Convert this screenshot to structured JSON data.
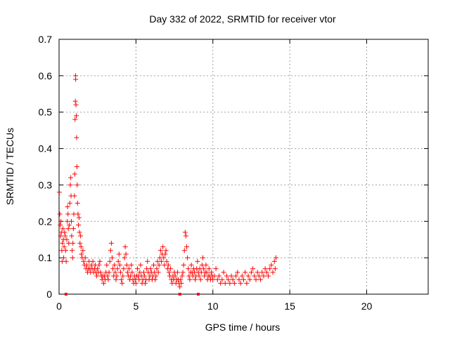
{
  "chart_data": {
    "type": "scatter",
    "title": "Day 332 of 2022, SRMTID for receiver vtor",
    "xlabel": "GPS time / hours",
    "ylabel": "SRMTID / TECUs",
    "xlim": [
      0,
      24
    ],
    "ylim": [
      0,
      0.7
    ],
    "xticks": [
      0,
      5,
      10,
      15,
      20
    ],
    "yticks": [
      0,
      0.1,
      0.2,
      0.3,
      0.4,
      0.5,
      0.6,
      0.7
    ],
    "xtick_labels": [
      "0",
      "5",
      "10",
      "15",
      "20"
    ],
    "ytick_labels": [
      "0",
      "0.1",
      "0.2",
      "0.3",
      "0.4",
      "0.5",
      "0.6",
      "0.7"
    ],
    "grid": true,
    "marker": "+",
    "color": "#ff0000",
    "series": [
      {
        "name": "SRMTID",
        "points": [
          [
            0.02,
            0.28
          ],
          [
            0.05,
            0.22
          ],
          [
            0.08,
            0.19
          ],
          [
            0.1,
            0.16
          ],
          [
            0.12,
            0.2
          ],
          [
            0.15,
            0.17
          ],
          [
            0.18,
            0.12
          ],
          [
            0.2,
            0.09
          ],
          [
            0.22,
            0.14
          ],
          [
            0.25,
            0.18
          ],
          [
            0.28,
            0.15
          ],
          [
            0.3,
            0.1
          ],
          [
            0.33,
            0.13
          ],
          [
            0.36,
            0.17
          ],
          [
            0.4,
            0.16
          ],
          [
            0.43,
            0.12
          ],
          [
            0.46,
            0.09
          ],
          [
            0.5,
            0.15
          ],
          [
            0.53,
            0.2
          ],
          [
            0.55,
            0.24
          ],
          [
            0.58,
            0.22
          ],
          [
            0.6,
            0.18
          ],
          [
            0.63,
            0.14
          ],
          [
            0.66,
            0.19
          ],
          [
            0.7,
            0.25
          ],
          [
            0.73,
            0.3
          ],
          [
            0.76,
            0.32
          ],
          [
            0.78,
            0.27
          ],
          [
            0.8,
            0.2
          ],
          [
            0.82,
            0.16
          ],
          [
            0.85,
            0.12
          ],
          [
            0.88,
            0.1
          ],
          [
            0.9,
            0.14
          ],
          [
            0.93,
            0.18
          ],
          [
            0.96,
            0.22
          ],
          [
            1.0,
            0.27
          ],
          [
            1.02,
            0.33
          ],
          [
            1.04,
            0.48
          ],
          [
            1.06,
            0.53
          ],
          [
            1.07,
            0.6
          ],
          [
            1.08,
            0.59
          ],
          [
            1.1,
            0.52
          ],
          [
            1.12,
            0.49
          ],
          [
            1.14,
            0.43
          ],
          [
            1.16,
            0.35
          ],
          [
            1.18,
            0.3
          ],
          [
            1.2,
            0.25
          ],
          [
            1.23,
            0.22
          ],
          [
            1.26,
            0.19
          ],
          [
            1.3,
            0.21
          ],
          [
            1.33,
            0.17
          ],
          [
            1.36,
            0.14
          ],
          [
            1.4,
            0.16
          ],
          [
            1.43,
            0.13
          ],
          [
            1.46,
            0.11
          ],
          [
            1.5,
            0.1
          ],
          [
            1.55,
            0.12
          ],
          [
            1.6,
            0.09
          ],
          [
            1.65,
            0.08
          ],
          [
            1.7,
            0.1
          ],
          [
            1.75,
            0.07
          ],
          [
            1.8,
            0.08
          ],
          [
            1.85,
            0.06
          ],
          [
            1.9,
            0.07
          ],
          [
            1.95,
            0.09
          ],
          [
            2.0,
            0.07
          ],
          [
            2.05,
            0.06
          ],
          [
            2.1,
            0.08
          ],
          [
            2.15,
            0.07
          ],
          [
            2.2,
            0.09
          ],
          [
            2.25,
            0.06
          ],
          [
            2.3,
            0.07
          ],
          [
            2.35,
            0.08
          ],
          [
            2.4,
            0.06
          ],
          [
            2.45,
            0.05
          ],
          [
            2.5,
            0.07
          ],
          [
            2.55,
            0.06
          ],
          [
            2.6,
            0.08
          ],
          [
            2.65,
            0.09
          ],
          [
            2.7,
            0.06
          ],
          [
            2.75,
            0.05
          ],
          [
            2.8,
            0.04
          ],
          [
            2.85,
            0.05
          ],
          [
            2.9,
            0.03
          ],
          [
            2.95,
            0.05
          ],
          [
            3.0,
            0.04
          ],
          [
            3.05,
            0.06
          ],
          [
            3.1,
            0.08
          ],
          [
            3.15,
            0.05
          ],
          [
            3.2,
            0.04
          ],
          [
            3.25,
            0.06
          ],
          [
            3.3,
            0.09
          ],
          [
            3.35,
            0.12
          ],
          [
            3.4,
            0.14
          ],
          [
            3.45,
            0.1
          ],
          [
            3.5,
            0.07
          ],
          [
            3.55,
            0.05
          ],
          [
            3.6,
            0.08
          ],
          [
            3.65,
            0.06
          ],
          [
            3.7,
            0.04
          ],
          [
            3.75,
            0.05
          ],
          [
            3.8,
            0.07
          ],
          [
            3.85,
            0.09
          ],
          [
            3.9,
            0.11
          ],
          [
            3.95,
            0.08
          ],
          [
            4.0,
            0.06
          ],
          [
            4.05,
            0.04
          ],
          [
            4.1,
            0.03
          ],
          [
            4.15,
            0.05
          ],
          [
            4.2,
            0.07
          ],
          [
            4.25,
            0.1
          ],
          [
            4.3,
            0.13
          ],
          [
            4.35,
            0.11
          ],
          [
            4.4,
            0.08
          ],
          [
            4.45,
            0.06
          ],
          [
            4.5,
            0.05
          ],
          [
            4.55,
            0.07
          ],
          [
            4.6,
            0.04
          ],
          [
            4.65,
            0.05
          ],
          [
            4.7,
            0.08
          ],
          [
            4.75,
            0.06
          ],
          [
            4.8,
            0.04
          ],
          [
            4.85,
            0.03
          ],
          [
            4.9,
            0.05
          ],
          [
            4.95,
            0.04
          ],
          [
            5.0,
            0.03
          ],
          [
            5.05,
            0.05
          ],
          [
            5.1,
            0.07
          ],
          [
            5.15,
            0.05
          ],
          [
            5.2,
            0.04
          ],
          [
            5.25,
            0.06
          ],
          [
            5.3,
            0.08
          ],
          [
            5.35,
            0.05
          ],
          [
            5.4,
            0.03
          ],
          [
            5.45,
            0.04
          ],
          [
            5.5,
            0.06
          ],
          [
            5.55,
            0.05
          ],
          [
            5.6,
            0.03
          ],
          [
            5.65,
            0.04
          ],
          [
            5.7,
            0.07
          ],
          [
            5.75,
            0.09
          ],
          [
            5.8,
            0.06
          ],
          [
            5.85,
            0.04
          ],
          [
            5.9,
            0.05
          ],
          [
            5.95,
            0.07
          ],
          [
            6.0,
            0.06
          ],
          [
            6.05,
            0.04
          ],
          [
            6.1,
            0.05
          ],
          [
            6.15,
            0.08
          ],
          [
            6.2,
            0.06
          ],
          [
            6.25,
            0.04
          ],
          [
            6.3,
            0.05
          ],
          [
            6.35,
            0.07
          ],
          [
            6.4,
            0.09
          ],
          [
            6.45,
            0.06
          ],
          [
            6.5,
            0.08
          ],
          [
            6.55,
            0.1
          ],
          [
            6.6,
            0.12
          ],
          [
            6.65,
            0.09
          ],
          [
            6.7,
            0.11
          ],
          [
            6.75,
            0.13
          ],
          [
            6.8,
            0.1
          ],
          [
            6.85,
            0.08
          ],
          [
            6.9,
            0.11
          ],
          [
            6.95,
            0.12
          ],
          [
            7.0,
            0.09
          ],
          [
            7.05,
            0.07
          ],
          [
            7.1,
            0.08
          ],
          [
            7.15,
            0.06
          ],
          [
            7.2,
            0.05
          ],
          [
            7.25,
            0.07
          ],
          [
            7.3,
            0.04
          ],
          [
            7.35,
            0.03
          ],
          [
            7.4,
            0.05
          ],
          [
            7.45,
            0.04
          ],
          [
            7.5,
            0.06
          ],
          [
            7.55,
            0.05
          ],
          [
            7.6,
            0.03
          ],
          [
            7.65,
            0.04
          ],
          [
            7.7,
            0.06
          ],
          [
            7.75,
            0.04
          ],
          [
            7.8,
            0.03
          ],
          [
            7.85,
            0.02
          ],
          [
            7.9,
            0.04
          ],
          [
            7.95,
            0.03
          ],
          [
            8.0,
            0.05
          ],
          [
            8.05,
            0.06
          ],
          [
            8.1,
            0.08
          ],
          [
            8.15,
            0.12
          ],
          [
            8.2,
            0.17
          ],
          [
            8.25,
            0.16
          ],
          [
            8.3,
            0.13
          ],
          [
            8.35,
            0.1
          ],
          [
            8.4,
            0.07
          ],
          [
            8.45,
            0.05
          ],
          [
            8.5,
            0.04
          ],
          [
            8.55,
            0.06
          ],
          [
            8.6,
            0.08
          ],
          [
            8.65,
            0.06
          ],
          [
            8.7,
            0.05
          ],
          [
            8.75,
            0.07
          ],
          [
            8.8,
            0.06
          ],
          [
            8.85,
            0.04
          ],
          [
            8.9,
            0.05
          ],
          [
            8.95,
            0.07
          ],
          [
            9.0,
            0.09
          ],
          [
            9.05,
            0.06
          ],
          [
            9.1,
            0.05
          ],
          [
            9.15,
            0.07
          ],
          [
            9.2,
            0.04
          ],
          [
            9.25,
            0.06
          ],
          [
            9.3,
            0.08
          ],
          [
            9.35,
            0.1
          ],
          [
            9.4,
            0.07
          ],
          [
            9.45,
            0.05
          ],
          [
            9.5,
            0.06
          ],
          [
            9.55,
            0.08
          ],
          [
            9.6,
            0.06
          ],
          [
            9.65,
            0.04
          ],
          [
            9.7,
            0.05
          ],
          [
            9.75,
            0.07
          ],
          [
            9.8,
            0.05
          ],
          [
            9.85,
            0.04
          ],
          [
            9.9,
            0.06
          ],
          [
            9.95,
            0.05
          ],
          [
            10.0,
            0.04
          ],
          [
            10.1,
            0.05
          ],
          [
            10.2,
            0.07
          ],
          [
            10.3,
            0.04
          ],
          [
            10.4,
            0.05
          ],
          [
            10.5,
            0.03
          ],
          [
            10.6,
            0.04
          ],
          [
            10.7,
            0.06
          ],
          [
            10.8,
            0.03
          ],
          [
            10.9,
            0.05
          ],
          [
            11.0,
            0.04
          ],
          [
            11.1,
            0.03
          ],
          [
            11.2,
            0.05
          ],
          [
            11.3,
            0.04
          ],
          [
            11.4,
            0.03
          ],
          [
            11.5,
            0.05
          ],
          [
            11.6,
            0.06
          ],
          [
            11.7,
            0.04
          ],
          [
            11.8,
            0.03
          ],
          [
            11.9,
            0.05
          ],
          [
            12.0,
            0.04
          ],
          [
            12.1,
            0.06
          ],
          [
            12.2,
            0.03
          ],
          [
            12.3,
            0.05
          ],
          [
            12.4,
            0.04
          ],
          [
            12.5,
            0.06
          ],
          [
            12.6,
            0.07
          ],
          [
            12.7,
            0.05
          ],
          [
            12.8,
            0.04
          ],
          [
            12.9,
            0.06
          ],
          [
            13.0,
            0.05
          ],
          [
            13.1,
            0.04
          ],
          [
            13.2,
            0.06
          ],
          [
            13.3,
            0.05
          ],
          [
            13.4,
            0.07
          ],
          [
            13.5,
            0.06
          ],
          [
            13.6,
            0.05
          ],
          [
            13.7,
            0.07
          ],
          [
            13.8,
            0.08
          ],
          [
            13.9,
            0.06
          ],
          [
            14.0,
            0.09
          ],
          [
            14.05,
            0.07
          ],
          [
            14.1,
            0.1
          ]
        ]
      }
    ],
    "gap_markers": [
      0.45,
      7.85,
      9.05
    ]
  }
}
